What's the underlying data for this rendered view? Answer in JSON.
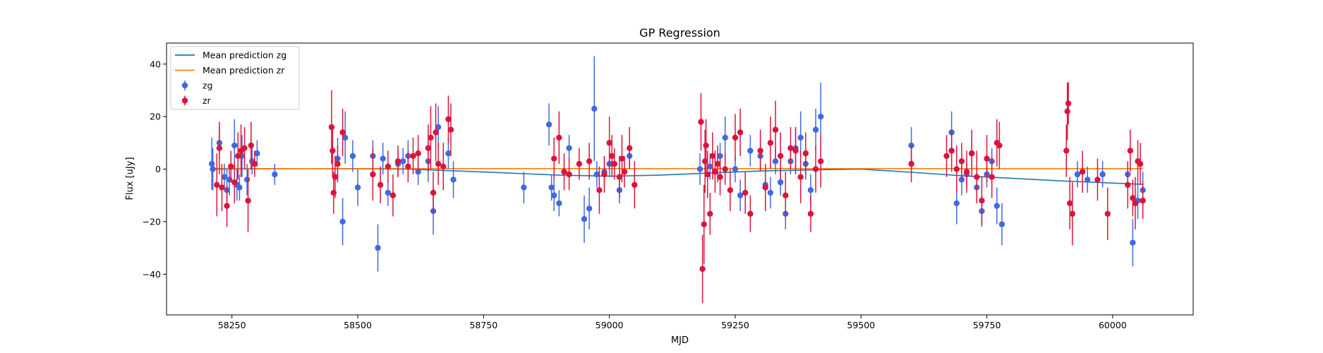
{
  "chart_data": {
    "type": "scatter",
    "title": "GP Regression",
    "xlabel": "MJD",
    "ylabel": "Flux [uJy]",
    "xlim": [
      58120,
      60160
    ],
    "ylim": [
      -55.5,
      48
    ],
    "xticks": [
      58250,
      58500,
      58750,
      59000,
      59250,
      59500,
      59750,
      60000
    ],
    "yticks": [
      -40,
      -20,
      0,
      20,
      40
    ],
    "grid": false,
    "legend_position": "top-left",
    "colors": {
      "zg": "#4169e1",
      "zr": "#dc143c",
      "line_zg": "#1f77b4",
      "line_zr": "#ff7f0e"
    },
    "lines": [
      {
        "name": "Mean prediction zg",
        "x": [
          58210,
          58400,
          58600,
          58700,
          58800,
          58900,
          59000,
          59100,
          59200,
          59300,
          59400,
          59500,
          59600,
          59700,
          59800,
          59900,
          60000,
          60060
        ],
        "y": [
          0,
          0.2,
          0,
          -0.7,
          -1.5,
          -2.3,
          -2.7,
          -2.3,
          -1.5,
          -0.7,
          -0.3,
          0,
          -1.2,
          -2.5,
          -3.5,
          -4.5,
          -5.3,
          -5.8
        ]
      },
      {
        "name": "Mean prediction zr",
        "x": [
          58210,
          60060
        ],
        "y": [
          0.2,
          0.2
        ]
      }
    ],
    "series": [
      {
        "name": "zg",
        "x": [
          58210,
          58212,
          58225,
          58235,
          58240,
          58245,
          58255,
          58260,
          58265,
          58270,
          58280,
          58290,
          58300,
          58335,
          58460,
          58470,
          58475,
          58490,
          58500,
          58530,
          58540,
          58550,
          58560,
          58580,
          58590,
          58600,
          58620,
          58640,
          58650,
          58660,
          58680,
          58690,
          58830,
          58880,
          58885,
          58890,
          58900,
          58920,
          58950,
          58960,
          58970,
          58975,
          58990,
          59000,
          59020,
          59040,
          59180,
          59200,
          59220,
          59230,
          59250,
          59260,
          59280,
          59300,
          59310,
          59320,
          59330,
          59340,
          59350,
          59360,
          59370,
          59380,
          59390,
          59400,
          59410,
          59420,
          59600,
          59680,
          59690,
          59700,
          59710,
          59720,
          59730,
          59740,
          59750,
          59760,
          59770,
          59780,
          59930,
          59950,
          59980,
          60030,
          60040,
          60050,
          60060
        ],
        "y": [
          2,
          0,
          10,
          -3,
          -8,
          -4,
          9,
          -6,
          -7,
          5,
          -4,
          3,
          6,
          -2,
          4,
          -20,
          12,
          5,
          -7,
          5,
          -30,
          4,
          -9,
          2,
          3,
          5,
          -1,
          3,
          -16,
          16,
          6,
          -4,
          -7,
          17,
          -7,
          -10,
          -13,
          8,
          -19,
          -15,
          23,
          -2,
          -1,
          2,
          -8,
          5,
          0,
          1,
          5,
          12,
          0,
          -10,
          7,
          5,
          -6,
          -9,
          3,
          -5,
          -17,
          3,
          8,
          12,
          2,
          -8,
          15,
          20,
          9,
          14,
          -13,
          -4,
          -2,
          6,
          -7,
          -16,
          -2,
          3,
          -14,
          -21,
          -2,
          -4,
          -2,
          -2,
          -28,
          -12,
          -8
        ],
        "err": [
          10,
          8,
          6,
          5,
          8,
          6,
          10,
          6,
          5,
          8,
          6,
          5,
          5,
          4,
          8,
          9,
          10,
          6,
          7,
          6,
          9,
          6,
          5,
          5,
          5,
          6,
          5,
          8,
          9,
          8,
          6,
          7,
          6,
          8,
          5,
          6,
          5,
          5,
          9,
          8,
          20,
          5,
          6,
          5,
          5,
          5,
          6,
          5,
          5,
          8,
          5,
          6,
          6,
          5,
          5,
          6,
          5,
          5,
          6,
          5,
          8,
          10,
          6,
          6,
          8,
          13,
          7,
          8,
          8,
          6,
          5,
          6,
          6,
          6,
          5,
          5,
          7,
          8,
          5,
          5,
          5,
          5,
          9,
          7,
          7
        ]
      },
      {
        "name": "zr",
        "x": [
          58220,
          58225,
          58230,
          58240,
          58248,
          58255,
          58262,
          58268,
          58275,
          58282,
          58288,
          58295,
          58448,
          58450,
          58452,
          58455,
          58460,
          58470,
          58530,
          58545,
          58560,
          58570,
          58580,
          58600,
          58610,
          58620,
          58640,
          58645,
          58650,
          58655,
          58660,
          58670,
          58680,
          58685,
          58890,
          58900,
          58910,
          58920,
          58940,
          58960,
          58980,
          58990,
          59000,
          59005,
          59010,
          59020,
          59025,
          59030,
          59040,
          59050,
          59182,
          59185,
          59188,
          59190,
          59192,
          59195,
          59200,
          59205,
          59210,
          59215,
          59220,
          59230,
          59240,
          59250,
          59260,
          59270,
          59280,
          59300,
          59310,
          59320,
          59330,
          59340,
          59350,
          59360,
          59370,
          59380,
          59390,
          59400,
          59410,
          59420,
          59600,
          59670,
          59680,
          59690,
          59700,
          59710,
          59720,
          59730,
          59740,
          59750,
          59760,
          59770,
          59775,
          59908,
          59910,
          59912,
          59915,
          59920,
          59940,
          59970,
          59990,
          60030,
          60035,
          60040,
          60045,
          60050,
          60055,
          60060
        ],
        "y": [
          -6,
          8,
          -7,
          -14,
          1,
          -5,
          5,
          7,
          8,
          -12,
          9,
          2,
          16,
          7,
          -9,
          -3,
          2,
          14,
          -2,
          -6,
          1,
          -10,
          3,
          1,
          5,
          6,
          8,
          12,
          -9,
          14,
          2,
          1,
          19,
          15,
          4,
          12,
          -1,
          -2,
          2,
          3,
          -8,
          -2,
          10,
          5,
          2,
          -3,
          4,
          -1,
          8,
          -6,
          18,
          -38,
          -21,
          3,
          9,
          -2,
          -17,
          5,
          -1,
          2,
          -3,
          0,
          -8,
          12,
          14,
          -9,
          -17,
          7,
          -7,
          10,
          15,
          5,
          -10,
          8,
          7,
          -3,
          6,
          -17,
          0,
          3,
          2,
          5,
          7,
          0,
          3,
          -1,
          6,
          -3,
          -12,
          4,
          -3,
          10,
          9,
          7,
          22,
          25,
          -13,
          -17,
          -1,
          -4,
          -17,
          -6,
          7,
          -11,
          -13,
          3,
          2,
          -12
        ],
        "err": [
          12,
          10,
          9,
          8,
          6,
          8,
          9,
          10,
          8,
          12,
          9,
          5,
          14,
          10,
          8,
          8,
          7,
          9,
          10,
          7,
          6,
          8,
          6,
          6,
          7,
          7,
          9,
          12,
          8,
          11,
          8,
          9,
          9,
          10,
          8,
          10,
          7,
          6,
          6,
          7,
          9,
          7,
          10,
          8,
          6,
          8,
          9,
          6,
          8,
          9,
          11,
          13,
          15,
          12,
          10,
          9,
          8,
          9,
          8,
          7,
          7,
          6,
          8,
          9,
          9,
          8,
          7,
          8,
          9,
          10,
          11,
          9,
          9,
          8,
          9,
          10,
          8,
          7,
          9,
          10,
          7,
          8,
          8,
          9,
          7,
          8,
          9,
          10,
          9,
          9,
          8,
          9,
          9,
          10,
          11,
          8,
          10,
          12,
          8,
          8,
          10,
          9,
          8,
          7,
          10,
          8,
          8,
          7
        ]
      }
    ]
  }
}
